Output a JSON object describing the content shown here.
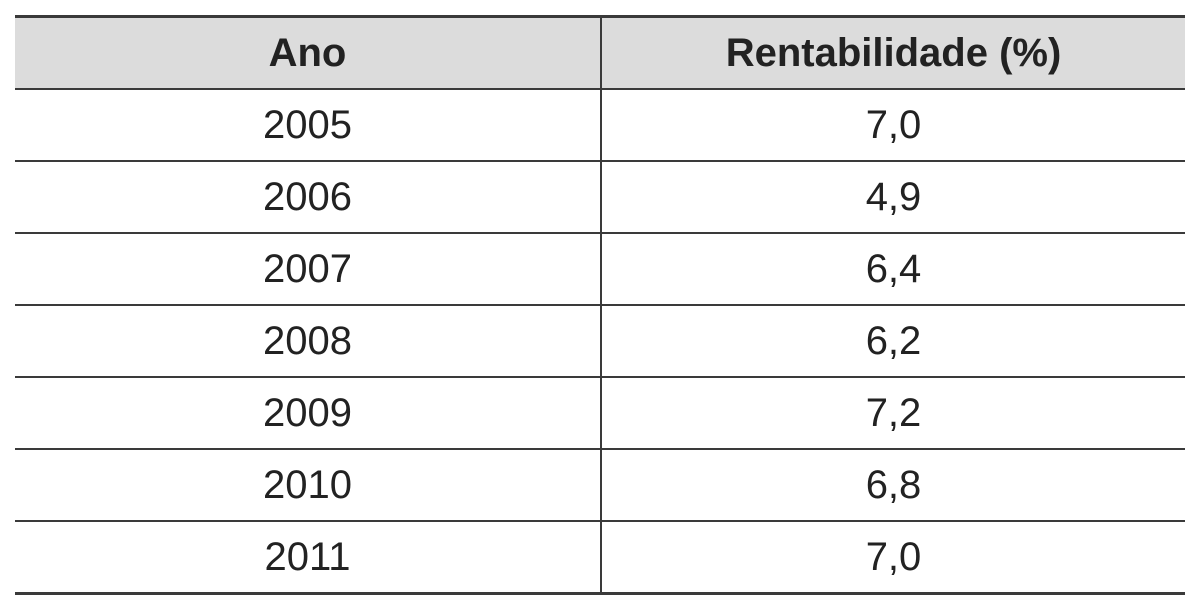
{
  "table": {
    "header": [
      "Ano",
      "Rentabilidade (%)"
    ],
    "rows": [
      [
        "2005",
        "7,0"
      ],
      [
        "2006",
        "4,9"
      ],
      [
        "2007",
        "6,4"
      ],
      [
        "2008",
        "6,2"
      ],
      [
        "2009",
        "7,2"
      ],
      [
        "2010",
        "6,8"
      ],
      [
        "2011",
        "7,0"
      ]
    ]
  }
}
